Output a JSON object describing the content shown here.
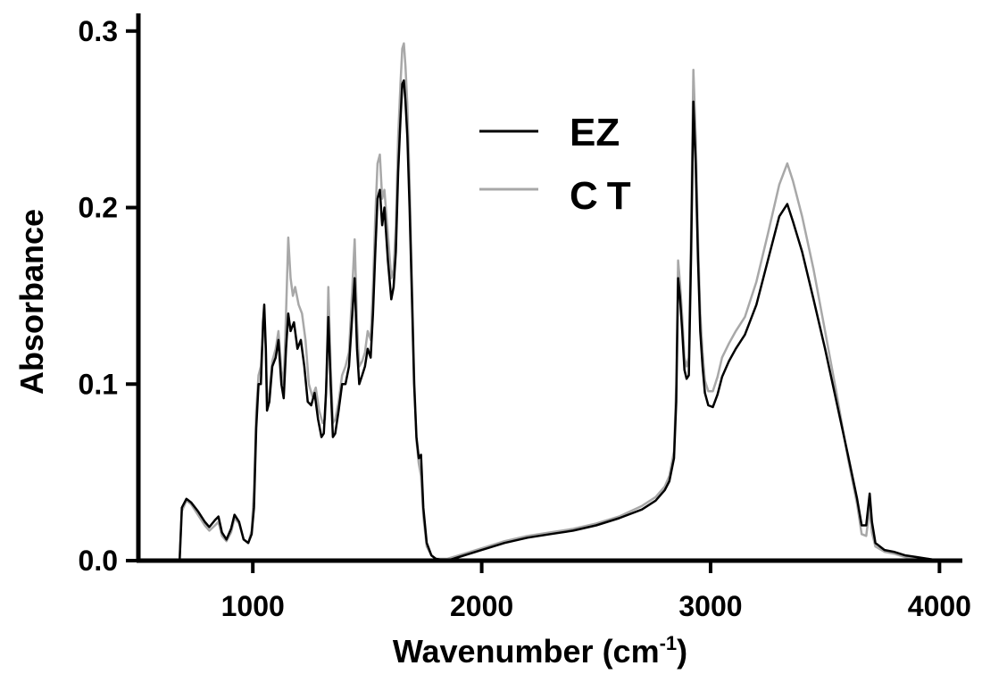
{
  "chart_data": {
    "type": "line",
    "xlabel": "Wavenumber (cm",
    "xlabel_sup": "-1",
    "xlabel_suffix": ")",
    "ylabel": "Absorbance",
    "xlim": [
      500,
      4100
    ],
    "ylim": [
      0,
      0.31
    ],
    "x_ticks": [
      1000,
      2000,
      3000,
      4000
    ],
    "x_tick_labels": [
      "1000",
      "2000",
      "3000",
      "4000"
    ],
    "y_ticks": [
      0.0,
      0.1,
      0.2,
      0.3
    ],
    "y_tick_labels": [
      "0.0",
      "0.1",
      "0.2",
      "0.3"
    ],
    "grid": false,
    "legend_position": "top-center",
    "series": [
      {
        "name": "EZ",
        "color": "#000000",
        "points": [
          [
            680,
            0.0
          ],
          [
            690,
            0.03
          ],
          [
            710,
            0.035
          ],
          [
            730,
            0.033
          ],
          [
            760,
            0.028
          ],
          [
            790,
            0.022
          ],
          [
            810,
            0.019
          ],
          [
            835,
            0.023
          ],
          [
            850,
            0.025
          ],
          [
            865,
            0.016
          ],
          [
            885,
            0.012
          ],
          [
            905,
            0.018
          ],
          [
            920,
            0.026
          ],
          [
            940,
            0.022
          ],
          [
            960,
            0.012
          ],
          [
            980,
            0.01
          ],
          [
            995,
            0.015
          ],
          [
            1005,
            0.03
          ],
          [
            1015,
            0.075
          ],
          [
            1025,
            0.1
          ],
          [
            1035,
            0.1
          ],
          [
            1045,
            0.135
          ],
          [
            1050,
            0.145
          ],
          [
            1057,
            0.12
          ],
          [
            1062,
            0.085
          ],
          [
            1072,
            0.09
          ],
          [
            1085,
            0.11
          ],
          [
            1100,
            0.115
          ],
          [
            1112,
            0.125
          ],
          [
            1125,
            0.1
          ],
          [
            1135,
            0.092
          ],
          [
            1145,
            0.12
          ],
          [
            1155,
            0.14
          ],
          [
            1165,
            0.13
          ],
          [
            1180,
            0.135
          ],
          [
            1195,
            0.12
          ],
          [
            1210,
            0.125
          ],
          [
            1225,
            0.11
          ],
          [
            1240,
            0.09
          ],
          [
            1255,
            0.088
          ],
          [
            1270,
            0.095
          ],
          [
            1285,
            0.08
          ],
          [
            1300,
            0.07
          ],
          [
            1310,
            0.072
          ],
          [
            1320,
            0.095
          ],
          [
            1330,
            0.138
          ],
          [
            1340,
            0.1
          ],
          [
            1350,
            0.07
          ],
          [
            1360,
            0.072
          ],
          [
            1375,
            0.085
          ],
          [
            1390,
            0.1
          ],
          [
            1405,
            0.1
          ],
          [
            1420,
            0.11
          ],
          [
            1435,
            0.14
          ],
          [
            1445,
            0.16
          ],
          [
            1455,
            0.12
          ],
          [
            1465,
            0.1
          ],
          [
            1478,
            0.105
          ],
          [
            1490,
            0.11
          ],
          [
            1502,
            0.12
          ],
          [
            1515,
            0.115
          ],
          [
            1525,
            0.14
          ],
          [
            1535,
            0.175
          ],
          [
            1545,
            0.205
          ],
          [
            1555,
            0.21
          ],
          [
            1565,
            0.19
          ],
          [
            1575,
            0.2
          ],
          [
            1590,
            0.17
          ],
          [
            1605,
            0.148
          ],
          [
            1615,
            0.155
          ],
          [
            1625,
            0.175
          ],
          [
            1635,
            0.22
          ],
          [
            1645,
            0.25
          ],
          [
            1653,
            0.27
          ],
          [
            1660,
            0.272
          ],
          [
            1667,
            0.26
          ],
          [
            1675,
            0.24
          ],
          [
            1685,
            0.2
          ],
          [
            1695,
            0.15
          ],
          [
            1705,
            0.1
          ],
          [
            1715,
            0.07
          ],
          [
            1725,
            0.058
          ],
          [
            1735,
            0.06
          ],
          [
            1745,
            0.03
          ],
          [
            1760,
            0.01
          ],
          [
            1780,
            0.003
          ],
          [
            1800,
            0.001
          ],
          [
            1850,
            0.0
          ],
          [
            1900,
            0.002
          ],
          [
            2000,
            0.006
          ],
          [
            2100,
            0.01
          ],
          [
            2200,
            0.013
          ],
          [
            2300,
            0.015
          ],
          [
            2400,
            0.017
          ],
          [
            2500,
            0.02
          ],
          [
            2600,
            0.024
          ],
          [
            2700,
            0.029
          ],
          [
            2760,
            0.034
          ],
          [
            2800,
            0.04
          ],
          [
            2820,
            0.045
          ],
          [
            2840,
            0.058
          ],
          [
            2850,
            0.09
          ],
          [
            2858,
            0.16
          ],
          [
            2866,
            0.15
          ],
          [
            2876,
            0.13
          ],
          [
            2886,
            0.108
          ],
          [
            2895,
            0.103
          ],
          [
            2905,
            0.105
          ],
          [
            2915,
            0.175
          ],
          [
            2925,
            0.26
          ],
          [
            2935,
            0.225
          ],
          [
            2945,
            0.17
          ],
          [
            2955,
            0.13
          ],
          [
            2965,
            0.11
          ],
          [
            2975,
            0.095
          ],
          [
            2990,
            0.088
          ],
          [
            3010,
            0.087
          ],
          [
            3030,
            0.094
          ],
          [
            3050,
            0.104
          ],
          [
            3080,
            0.113
          ],
          [
            3110,
            0.12
          ],
          [
            3150,
            0.128
          ],
          [
            3200,
            0.145
          ],
          [
            3250,
            0.17
          ],
          [
            3300,
            0.195
          ],
          [
            3335,
            0.202
          ],
          [
            3360,
            0.192
          ],
          [
            3400,
            0.175
          ],
          [
            3450,
            0.148
          ],
          [
            3500,
            0.12
          ],
          [
            3550,
            0.09
          ],
          [
            3600,
            0.06
          ],
          [
            3640,
            0.035
          ],
          [
            3660,
            0.02
          ],
          [
            3680,
            0.02
          ],
          [
            3695,
            0.038
          ],
          [
            3705,
            0.022
          ],
          [
            3720,
            0.01
          ],
          [
            3760,
            0.006
          ],
          [
            3800,
            0.005
          ],
          [
            3850,
            0.003
          ],
          [
            3900,
            0.002
          ],
          [
            3950,
            0.001
          ],
          [
            4000,
            0.0
          ]
        ]
      },
      {
        "name": "CT",
        "color": "#a8a8a8",
        "points": [
          [
            680,
            0.0
          ],
          [
            690,
            0.028
          ],
          [
            710,
            0.034
          ],
          [
            730,
            0.032
          ],
          [
            760,
            0.026
          ],
          [
            790,
            0.02
          ],
          [
            810,
            0.017
          ],
          [
            835,
            0.02
          ],
          [
            850,
            0.022
          ],
          [
            865,
            0.014
          ],
          [
            885,
            0.011
          ],
          [
            905,
            0.016
          ],
          [
            920,
            0.024
          ],
          [
            940,
            0.021
          ],
          [
            960,
            0.012
          ],
          [
            980,
            0.01
          ],
          [
            995,
            0.017
          ],
          [
            1005,
            0.04
          ],
          [
            1015,
            0.085
          ],
          [
            1025,
            0.105
          ],
          [
            1035,
            0.11
          ],
          [
            1045,
            0.13
          ],
          [
            1050,
            0.135
          ],
          [
            1057,
            0.118
          ],
          [
            1062,
            0.09
          ],
          [
            1072,
            0.095
          ],
          [
            1085,
            0.113
          ],
          [
            1100,
            0.12
          ],
          [
            1112,
            0.13
          ],
          [
            1125,
            0.108
          ],
          [
            1135,
            0.1
          ],
          [
            1145,
            0.14
          ],
          [
            1155,
            0.183
          ],
          [
            1165,
            0.16
          ],
          [
            1175,
            0.15
          ],
          [
            1185,
            0.155
          ],
          [
            1200,
            0.145
          ],
          [
            1215,
            0.14
          ],
          [
            1230,
            0.125
          ],
          [
            1245,
            0.1
          ],
          [
            1260,
            0.093
          ],
          [
            1275,
            0.098
          ],
          [
            1290,
            0.085
          ],
          [
            1305,
            0.078
          ],
          [
            1315,
            0.08
          ],
          [
            1322,
            0.105
          ],
          [
            1330,
            0.155
          ],
          [
            1340,
            0.11
          ],
          [
            1350,
            0.078
          ],
          [
            1360,
            0.08
          ],
          [
            1375,
            0.09
          ],
          [
            1390,
            0.105
          ],
          [
            1405,
            0.11
          ],
          [
            1420,
            0.118
          ],
          [
            1435,
            0.155
          ],
          [
            1445,
            0.182
          ],
          [
            1455,
            0.135
          ],
          [
            1465,
            0.11
          ],
          [
            1478,
            0.113
          ],
          [
            1490,
            0.118
          ],
          [
            1502,
            0.13
          ],
          [
            1515,
            0.125
          ],
          [
            1525,
            0.155
          ],
          [
            1535,
            0.195
          ],
          [
            1545,
            0.225
          ],
          [
            1555,
            0.23
          ],
          [
            1565,
            0.205
          ],
          [
            1575,
            0.21
          ],
          [
            1590,
            0.185
          ],
          [
            1605,
            0.16
          ],
          [
            1615,
            0.165
          ],
          [
            1625,
            0.19
          ],
          [
            1635,
            0.24
          ],
          [
            1645,
            0.27
          ],
          [
            1653,
            0.29
          ],
          [
            1660,
            0.293
          ],
          [
            1667,
            0.28
          ],
          [
            1675,
            0.258
          ],
          [
            1685,
            0.215
          ],
          [
            1695,
            0.16
          ],
          [
            1705,
            0.105
          ],
          [
            1715,
            0.068
          ],
          [
            1725,
            0.055
          ],
          [
            1735,
            0.048
          ],
          [
            1745,
            0.025
          ],
          [
            1760,
            0.008
          ],
          [
            1780,
            0.003
          ],
          [
            1800,
            0.001
          ],
          [
            1850,
            0.001
          ],
          [
            1900,
            0.003
          ],
          [
            2000,
            0.007
          ],
          [
            2100,
            0.011
          ],
          [
            2200,
            0.014
          ],
          [
            2300,
            0.016
          ],
          [
            2400,
            0.018
          ],
          [
            2500,
            0.021
          ],
          [
            2600,
            0.025
          ],
          [
            2700,
            0.031
          ],
          [
            2760,
            0.036
          ],
          [
            2800,
            0.042
          ],
          [
            2820,
            0.048
          ],
          [
            2840,
            0.062
          ],
          [
            2850,
            0.1
          ],
          [
            2858,
            0.17
          ],
          [
            2866,
            0.158
          ],
          [
            2876,
            0.138
          ],
          [
            2886,
            0.115
          ],
          [
            2895,
            0.11
          ],
          [
            2905,
            0.115
          ],
          [
            2915,
            0.19
          ],
          [
            2925,
            0.278
          ],
          [
            2935,
            0.24
          ],
          [
            2945,
            0.182
          ],
          [
            2955,
            0.14
          ],
          [
            2965,
            0.118
          ],
          [
            2975,
            0.102
          ],
          [
            2990,
            0.096
          ],
          [
            3010,
            0.096
          ],
          [
            3030,
            0.104
          ],
          [
            3050,
            0.115
          ],
          [
            3080,
            0.123
          ],
          [
            3110,
            0.13
          ],
          [
            3150,
            0.138
          ],
          [
            3200,
            0.158
          ],
          [
            3250,
            0.185
          ],
          [
            3300,
            0.213
          ],
          [
            3335,
            0.225
          ],
          [
            3360,
            0.215
          ],
          [
            3400,
            0.195
          ],
          [
            3450,
            0.165
          ],
          [
            3500,
            0.13
          ],
          [
            3550,
            0.095
          ],
          [
            3600,
            0.058
          ],
          [
            3640,
            0.032
          ],
          [
            3660,
            0.015
          ],
          [
            3680,
            0.014
          ],
          [
            3695,
            0.03
          ],
          [
            3705,
            0.016
          ],
          [
            3720,
            0.008
          ],
          [
            3760,
            0.005
          ],
          [
            3800,
            0.004
          ],
          [
            3850,
            0.002
          ],
          [
            3900,
            0.001
          ],
          [
            3950,
            0.001
          ],
          [
            4000,
            0.0
          ]
        ]
      }
    ]
  }
}
